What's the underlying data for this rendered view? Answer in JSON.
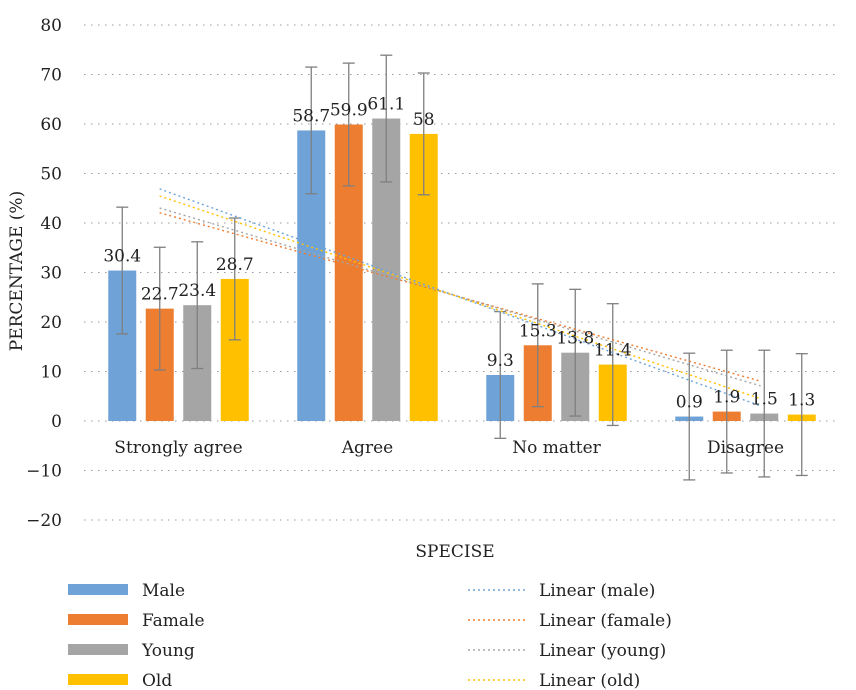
{
  "chart_data": {
    "type": "bar",
    "xlabel": "SPECISE",
    "ylabel": "PERCENTAGE (%)",
    "ylim": [
      -20,
      80
    ],
    "yticks": [
      -20,
      -10,
      0,
      10,
      20,
      30,
      40,
      50,
      60,
      70,
      80
    ],
    "grid": true,
    "categories": [
      "Strongly agree",
      "Agree",
      "No matter",
      "Disagree"
    ],
    "series": [
      {
        "name": "Male",
        "color": "#6fa3d8",
        "values": [
          30.4,
          58.7,
          9.3,
          0.9
        ],
        "labels": [
          "30.4",
          "58.7",
          "9.3",
          "0.9"
        ],
        "error": 12.8
      },
      {
        "name": "Famale",
        "color": "#ed7d31",
        "values": [
          22.7,
          59.9,
          15.3,
          1.9
        ],
        "labels": [
          "22.7",
          "59.9",
          "15.3",
          "1.9"
        ],
        "error": 12.4
      },
      {
        "name": "Young",
        "color": "#a5a5a5",
        "values": [
          23.4,
          61.1,
          13.8,
          1.5
        ],
        "labels": [
          "23.4",
          "61.1",
          "13.8",
          "1.5"
        ],
        "error": 12.8
      },
      {
        "name": "Old",
        "color": "#ffc000",
        "values": [
          28.7,
          58,
          11.4,
          1.3
        ],
        "labels": [
          "28.7",
          "58",
          "11.4",
          "1.3"
        ],
        "error": 12.3
      }
    ],
    "trendlines": [
      {
        "name": "Linear (male)",
        "color": "#6fa3d8"
      },
      {
        "name": "Linear (famale)",
        "color": "#ed7d31"
      },
      {
        "name": "Linear (young)",
        "color": "#a5a5a5"
      },
      {
        "name": "Linear (old)",
        "color": "#ffc000"
      }
    ],
    "legend_position": "bottom"
  }
}
